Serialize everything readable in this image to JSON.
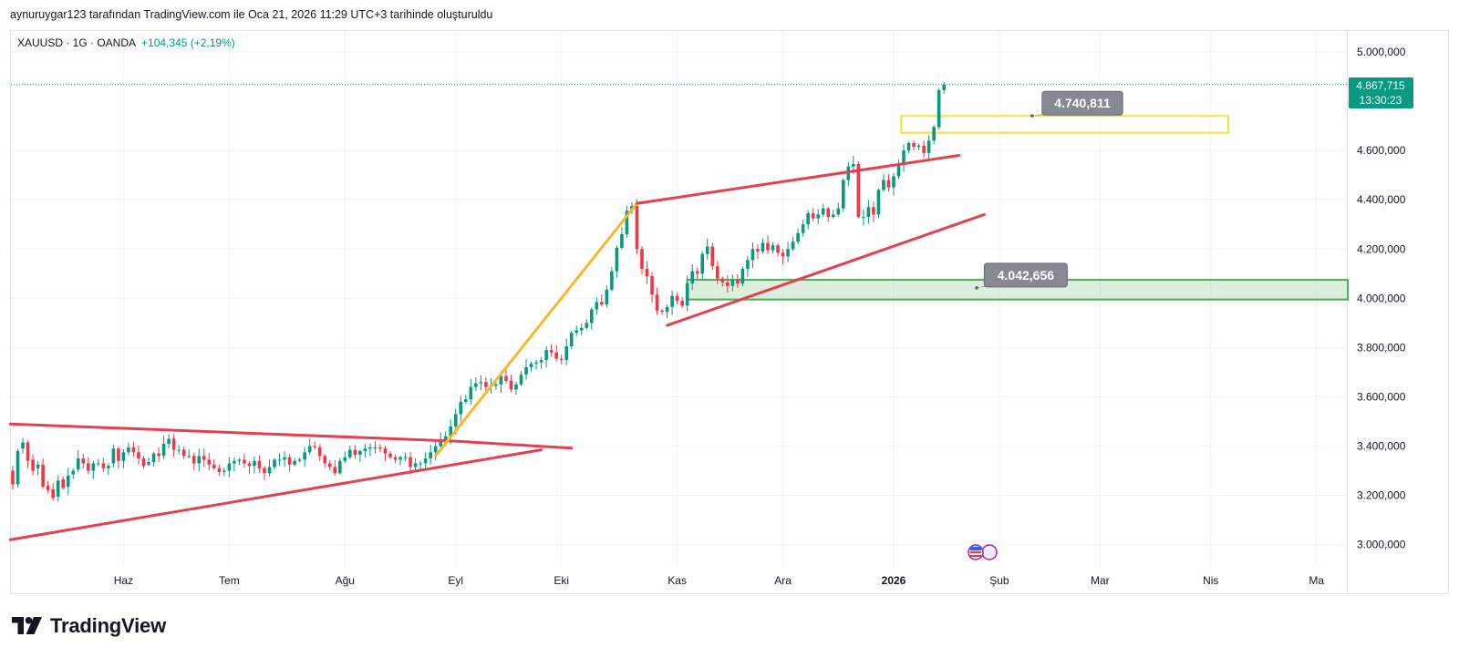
{
  "header": {
    "credit": "aynuruygar123 tarafından TradingView.com ile Oca 21, 2026 11:29 UTC+3 tarihinde oluşturuldu"
  },
  "legend": {
    "symbol": "XAUUSD · 1G · OANDA",
    "change": "+104,345 (+2,19%)"
  },
  "price_tag": {
    "price": "4.867,715",
    "countdown": "13:30:23"
  },
  "callouts": [
    {
      "label": "4.740,811"
    },
    {
      "label": "4.042,656"
    }
  ],
  "brand": {
    "name": "TradingView"
  },
  "colors": {
    "up": "#089981",
    "down": "#f23645",
    "grid": "#f0f3fa",
    "trend": "#e5404f",
    "impulse": "#f7b731",
    "zone_green": "#4caf50",
    "zone_yellow": "#f5e13c",
    "callout_bg": "#868993"
  },
  "chart_data": {
    "type": "candlestick",
    "symbol": "XAUUSD",
    "timeframe": "1G",
    "ylim": [
      2910000,
      5085000
    ],
    "y_ticks": [
      3000000,
      3200000,
      3400000,
      3600000,
      3800000,
      4000000,
      4200000,
      4400000,
      4600000,
      5000000
    ],
    "y_tick_labels": [
      "3.000,000",
      "3.200,000",
      "3.400,000",
      "3.600,000",
      "3.800,000",
      "4.000,000",
      "4.200,000",
      "4.400,000",
      "4.600,000",
      "5.000,000"
    ],
    "x_ticks": [
      {
        "label": "Haz",
        "idx": 22
      },
      {
        "label": "Tem",
        "idx": 43
      },
      {
        "label": "Ağu",
        "idx": 66
      },
      {
        "label": "Eyl",
        "idx": 88
      },
      {
        "label": "Eki",
        "idx": 109
      },
      {
        "label": "Kas",
        "idx": 132
      },
      {
        "label": "Ara",
        "idx": 153
      },
      {
        "label": "2026",
        "idx": 175,
        "bold": true
      },
      {
        "label": "Şub",
        "idx": 196
      },
      {
        "label": "Mar",
        "idx": 216
      },
      {
        "label": "Nis",
        "idx": 238
      },
      {
        "label": "Ma",
        "idx": 259
      }
    ],
    "last_price": 4867715,
    "closes": [
      3245000,
      3380000,
      3415000,
      3340000,
      3300000,
      3325000,
      3235000,
      3220000,
      3190000,
      3260000,
      3230000,
      3280000,
      3300000,
      3350000,
      3330000,
      3300000,
      3330000,
      3330000,
      3310000,
      3320000,
      3390000,
      3340000,
      3375000,
      3395000,
      3375000,
      3350000,
      3320000,
      3335000,
      3370000,
      3360000,
      3410000,
      3430000,
      3385000,
      3385000,
      3360000,
      3360000,
      3330000,
      3360000,
      3345000,
      3325000,
      3310000,
      3295000,
      3300000,
      3330000,
      3340000,
      3345000,
      3330000,
      3320000,
      3340000,
      3310000,
      3290000,
      3315000,
      3345000,
      3345000,
      3355000,
      3325000,
      3340000,
      3345000,
      3375000,
      3400000,
      3395000,
      3360000,
      3330000,
      3315000,
      3290000,
      3340000,
      3355000,
      3385000,
      3365000,
      3380000,
      3390000,
      3395000,
      3395000,
      3390000,
      3370000,
      3355000,
      3345000,
      3355000,
      3355000,
      3315000,
      3330000,
      3330000,
      3350000,
      3375000,
      3400000,
      3425000,
      3440000,
      3480000,
      3530000,
      3580000,
      3590000,
      3640000,
      3655000,
      3660000,
      3640000,
      3645000,
      3650000,
      3685000,
      3665000,
      3630000,
      3650000,
      3690000,
      3720000,
      3735000,
      3740000,
      3750000,
      3790000,
      3780000,
      3755000,
      3750000,
      3805000,
      3860000,
      3870000,
      3880000,
      3900000,
      3955000,
      3985000,
      3975000,
      4035000,
      4110000,
      4205000,
      4260000,
      4355000,
      4375000,
      4200000,
      4120000,
      4090000,
      4015000,
      3950000,
      3945000,
      3965000,
      4010000,
      3990000,
      3970000,
      4060000,
      4110000,
      4100000,
      4180000,
      4210000,
      4130000,
      4080000,
      4065000,
      4050000,
      4075000,
      4060000,
      4120000,
      4155000,
      4200000,
      4190000,
      4225000,
      4195000,
      4215000,
      4185000,
      4170000,
      4200000,
      4230000,
      4265000,
      4300000,
      4345000,
      4325000,
      4340000,
      4365000,
      4330000,
      4340000,
      4365000,
      4480000,
      4535000,
      4545000,
      4330000,
      4330000,
      4370000,
      4340000,
      4440000,
      4480000,
      4450000,
      4495000,
      4540000,
      4600000,
      4630000,
      4615000,
      4620000,
      4590000,
      4640000,
      4695000,
      4845000,
      4867715
    ],
    "opens": [
      3300000,
      3245000,
      3390000,
      3415000,
      3345000,
      3310000,
      3325000,
      3240000,
      3225000,
      3195000,
      3265000,
      3235000,
      3285000,
      3305000,
      3350000,
      3330000,
      3300000,
      3330000,
      3330000,
      3310000,
      3330000,
      3390000,
      3340000,
      3375000,
      3395000,
      3375000,
      3350000,
      3325000,
      3335000,
      3370000,
      3360000,
      3410000,
      3430000,
      3385000,
      3385000,
      3360000,
      3360000,
      3330000,
      3360000,
      3345000,
      3325000,
      3310000,
      3295000,
      3300000,
      3330000,
      3340000,
      3345000,
      3330000,
      3320000,
      3340000,
      3310000,
      3290000,
      3315000,
      3345000,
      3345000,
      3355000,
      3325000,
      3340000,
      3345000,
      3375000,
      3400000,
      3395000,
      3360000,
      3330000,
      3315000,
      3290000,
      3340000,
      3355000,
      3385000,
      3365000,
      3380000,
      3390000,
      3395000,
      3395000,
      3390000,
      3370000,
      3355000,
      3345000,
      3355000,
      3355000,
      3315000,
      3330000,
      3330000,
      3350000,
      3375000,
      3400000,
      3425000,
      3440000,
      3480000,
      3530000,
      3580000,
      3590000,
      3640000,
      3655000,
      3660000,
      3640000,
      3645000,
      3650000,
      3685000,
      3665000,
      3630000,
      3650000,
      3690000,
      3720000,
      3735000,
      3740000,
      3750000,
      3790000,
      3780000,
      3755000,
      3750000,
      3805000,
      3860000,
      3870000,
      3880000,
      3900000,
      3955000,
      3985000,
      3975000,
      4035000,
      4110000,
      4205000,
      4260000,
      4355000,
      4375000,
      4200000,
      4120000,
      4090000,
      4015000,
      3950000,
      3945000,
      3965000,
      4010000,
      3990000,
      3970000,
      4060000,
      4110000,
      4100000,
      4180000,
      4210000,
      4130000,
      4080000,
      4065000,
      4050000,
      4075000,
      4060000,
      4120000,
      4155000,
      4200000,
      4190000,
      4225000,
      4195000,
      4215000,
      4185000,
      4170000,
      4200000,
      4230000,
      4265000,
      4300000,
      4345000,
      4325000,
      4340000,
      4365000,
      4330000,
      4340000,
      4365000,
      4480000,
      4535000,
      4545000,
      4330000,
      4330000,
      4370000,
      4340000,
      4440000,
      4480000,
      4450000,
      4495000,
      4540000,
      4600000,
      4630000,
      4615000,
      4620000,
      4590000,
      4640000,
      4695000,
      4845000
    ],
    "overlays": [
      {
        "kind": "trendline",
        "color": "trend",
        "points": [
          [
            -0.5,
            3490000
          ],
          [
            88,
            3420000
          ],
          [
            111,
            3392000
          ]
        ]
      },
      {
        "kind": "trendline",
        "color": "trend",
        "points": [
          [
            -0.5,
            3020000
          ],
          [
            105,
            3385000
          ]
        ]
      },
      {
        "kind": "trendline",
        "color": "impulse",
        "points": [
          [
            84,
            3360000
          ],
          [
            124,
            4385000
          ]
        ]
      },
      {
        "kind": "trendline",
        "color": "trend",
        "points": [
          [
            124,
            4385000
          ],
          [
            188,
            4580000
          ]
        ]
      },
      {
        "kind": "trendline",
        "color": "trend",
        "points": [
          [
            130,
            3890000
          ],
          [
            193,
            4340000
          ]
        ]
      },
      {
        "kind": "rectangle",
        "color": "zone_green",
        "from_idx": 134,
        "y_top": 4075000,
        "y_bottom": 3995000,
        "to_end": true
      },
      {
        "kind": "rectangle",
        "color": "zone_yellow",
        "from_idx": 176.5,
        "to_idx": 241.5,
        "y_top": 4740000,
        "y_bottom": 4672000
      },
      {
        "kind": "callout",
        "label_index": 0,
        "anchor_idx": 202.5,
        "anchor_y": 4740811,
        "box_idx": [
          204.5,
          220.5
        ],
        "box_y": 4840000
      },
      {
        "kind": "callout",
        "label_index": 1,
        "anchor_idx": 191.5,
        "anchor_y": 4042656,
        "box_idx": [
          193,
          209.5
        ],
        "box_y": 4142000
      }
    ]
  }
}
